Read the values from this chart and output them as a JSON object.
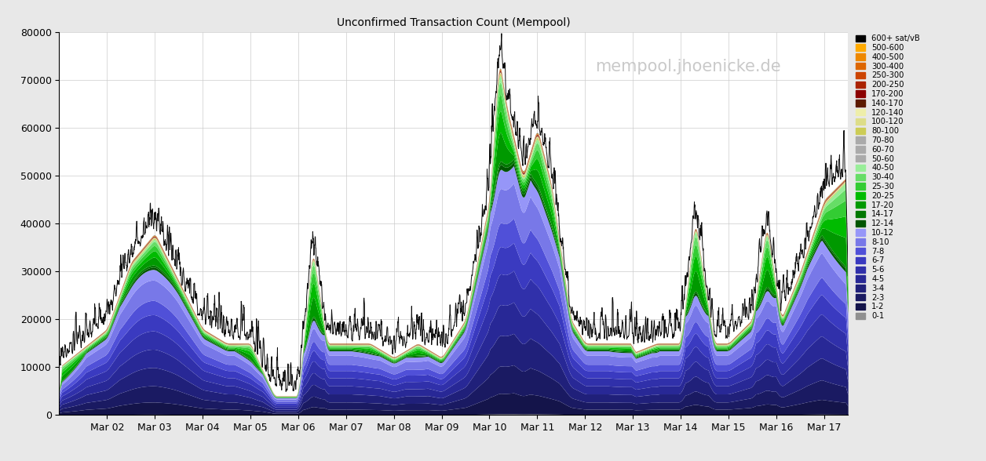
{
  "title": "Unconfirmed Transaction Count (Mempool)",
  "watermark": "mempool.jhoenicke.de",
  "ylim": [
    0,
    80000
  ],
  "yticks": [
    0,
    10000,
    20000,
    30000,
    40000,
    50000,
    60000,
    70000,
    80000
  ],
  "xtick_labels": [
    "Mar 02",
    "Mar 03",
    "Mar 04",
    "Mar 05",
    "Mar 06",
    "Mar 07",
    "Mar 08",
    "Mar 09",
    "Mar 10",
    "Mar 11",
    "Mar 12",
    "Mar 13",
    "Mar 14",
    "Mar 15",
    "Mar 16",
    "Mar 17"
  ],
  "xtick_positions": [
    1,
    2,
    3,
    4,
    5,
    6,
    7,
    8,
    9,
    10,
    11,
    12,
    13,
    14,
    15,
    16
  ],
  "background_color": "#e8e8e8",
  "plot_background": "#ffffff",
  "fee_bands": [
    {
      "label": "0-1",
      "color": "#909090"
    },
    {
      "label": "1-2",
      "color": "#14144a"
    },
    {
      "label": "2-3",
      "color": "#1a1a62"
    },
    {
      "label": "3-4",
      "color": "#20207a"
    },
    {
      "label": "4-5",
      "color": "#282896"
    },
    {
      "label": "5-6",
      "color": "#3030aa"
    },
    {
      "label": "6-7",
      "color": "#3a3ac0"
    },
    {
      "label": "7-8",
      "color": "#5050d8"
    },
    {
      "label": "8-10",
      "color": "#7878e8"
    },
    {
      "label": "10-12",
      "color": "#9696f8"
    },
    {
      "label": "12-14",
      "color": "#005500"
    },
    {
      "label": "14-17",
      "color": "#007700"
    },
    {
      "label": "17-20",
      "color": "#009900"
    },
    {
      "label": "20-25",
      "color": "#00bb00"
    },
    {
      "label": "25-30",
      "color": "#33cc33"
    },
    {
      "label": "30-40",
      "color": "#66dd66"
    },
    {
      "label": "40-50",
      "color": "#99ee99"
    },
    {
      "label": "50-60",
      "color": "#aaaaaa"
    },
    {
      "label": "60-70",
      "color": "#aaaaaa"
    },
    {
      "label": "70-80",
      "color": "#aaaaaa"
    },
    {
      "label": "80-100",
      "color": "#cccc55"
    },
    {
      "label": "100-120",
      "color": "#dddd88"
    },
    {
      "label": "120-140",
      "color": "#eeeeaa"
    },
    {
      "label": "140-170",
      "color": "#5c1a00"
    },
    {
      "label": "170-200",
      "color": "#8b0000"
    },
    {
      "label": "200-250",
      "color": "#aa2200"
    },
    {
      "label": "250-300",
      "color": "#cc4400"
    },
    {
      "label": "300-400",
      "color": "#dd6600"
    },
    {
      "label": "400-500",
      "color": "#ee8800"
    },
    {
      "label": "500-600",
      "color": "#ffaa00"
    },
    {
      "label": "600+",
      "color": "#000000"
    }
  ],
  "band_base_fractions": [
    0.003,
    0.06,
    0.08,
    0.09,
    0.09,
    0.09,
    0.08,
    0.07,
    0.1,
    0.05,
    0.01,
    0.01,
    0.01,
    0.01,
    0.01,
    0.01,
    0.005,
    0.0,
    0.0,
    0.0,
    0.005,
    0.003,
    0.002,
    0.002,
    0.002,
    0.002,
    0.001,
    0.001,
    0.001,
    0.001,
    0.001
  ]
}
